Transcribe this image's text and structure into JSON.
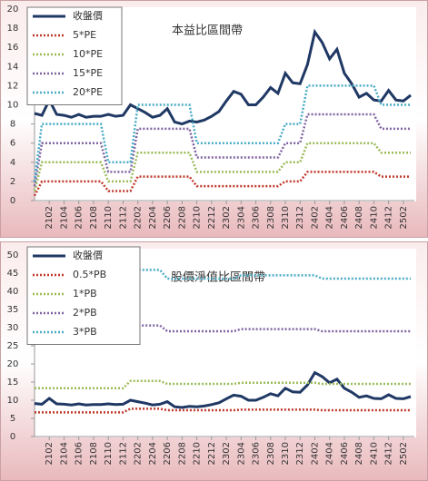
{
  "chart_data": [
    {
      "type": "line",
      "title": "本益比區間帶",
      "categories": [
        null,
        null,
        "2102",
        null,
        "2104",
        null,
        "2106",
        null,
        "2108",
        null,
        "2110",
        null,
        "2112",
        null,
        "2202",
        null,
        "2204",
        null,
        "2206",
        null,
        "2208",
        null,
        "2210",
        null,
        "2212",
        null,
        "2302",
        null,
        "2304",
        null,
        "2306",
        null,
        "2308",
        null,
        "2310",
        null,
        "2312",
        null,
        "2402",
        null,
        "2404",
        null,
        "2406",
        null,
        "2408",
        null,
        "2410",
        null,
        "2412",
        null,
        "2502",
        null
      ],
      "ylim": [
        0,
        20
      ],
      "yticks": [
        0,
        2,
        4,
        6,
        8,
        10,
        12,
        14,
        16,
        18,
        20
      ],
      "series": [
        {
          "name": "收盤價",
          "color": "#1f3864",
          "values": [
            9.1,
            8.9,
            10.5,
            9.0,
            8.9,
            8.7,
            9.0,
            8.7,
            8.8,
            8.8,
            9.0,
            8.8,
            8.9,
            10.0,
            9.6,
            9.2,
            8.7,
            8.9,
            9.6,
            8.2,
            8.0,
            8.3,
            8.2,
            8.4,
            8.8,
            9.3,
            10.4,
            11.4,
            11.1,
            10.0,
            10.0,
            10.8,
            11.8,
            11.2,
            13.3,
            12.3,
            12.2,
            14.2,
            17.6,
            16.5,
            14.8,
            15.8,
            13.3,
            12.2,
            10.8,
            11.2,
            10.5,
            10.4,
            11.5,
            10.5,
            10.4,
            11.0
          ]
        },
        {
          "name": "5*PE",
          "color": "#c0392b",
          "values": [
            0.5,
            2,
            2,
            2,
            2,
            2,
            2,
            2,
            2,
            2,
            1,
            1,
            1,
            1,
            2.5,
            2.5,
            2.5,
            2.5,
            2.5,
            2.5,
            2.5,
            2.5,
            1.5,
            1.5,
            1.5,
            1.5,
            1.5,
            1.5,
            1.5,
            1.5,
            1.5,
            1.5,
            1.5,
            1.5,
            2,
            2,
            2,
            3,
            3,
            3,
            3,
            3,
            3,
            3,
            3,
            3,
            3,
            2.5,
            2.5,
            2.5,
            2.5,
            2.5
          ]
        },
        {
          "name": "10*PE",
          "color": "#9bbb59",
          "values": [
            1,
            4,
            4,
            4,
            4,
            4,
            4,
            4,
            4,
            4,
            2,
            2,
            2,
            2,
            5,
            5,
            5,
            5,
            5,
            5,
            5,
            5,
            3,
            3,
            3,
            3,
            3,
            3,
            3,
            3,
            3,
            3,
            3,
            3,
            4,
            4,
            4,
            6,
            6,
            6,
            6,
            6,
            6,
            6,
            6,
            6,
            6,
            5,
            5,
            5,
            5,
            5
          ]
        },
        {
          "name": "15*PE",
          "color": "#8064a2",
          "values": [
            1.5,
            6,
            6,
            6,
            6,
            6,
            6,
            6,
            6,
            6,
            3,
            3,
            3,
            3,
            7.5,
            7.5,
            7.5,
            7.5,
            7.5,
            7.5,
            7.5,
            7.5,
            4.5,
            4.5,
            4.5,
            4.5,
            4.5,
            4.5,
            4.5,
            4.5,
            4.5,
            4.5,
            4.5,
            4.5,
            6,
            6,
            6,
            9,
            9,
            9,
            9,
            9,
            9,
            9,
            9,
            9,
            9,
            7.5,
            7.5,
            7.5,
            7.5,
            7.5
          ]
        },
        {
          "name": "20*PE",
          "color": "#4bacc6",
          "values": [
            2,
            8,
            8,
            8,
            8,
            8,
            8,
            8,
            8,
            8,
            4,
            4,
            4,
            4,
            10,
            10,
            10,
            10,
            10,
            10,
            10,
            10,
            6,
            6,
            6,
            6,
            6,
            6,
            6,
            6,
            6,
            6,
            6,
            6,
            8,
            8,
            8,
            12,
            12,
            12,
            12,
            12,
            12,
            12,
            12,
            12,
            12,
            10,
            10,
            10,
            10,
            10
          ]
        }
      ]
    },
    {
      "type": "line",
      "title": "股價淨值比區間帶",
      "categories": [
        null,
        null,
        "2102",
        null,
        "2104",
        null,
        "2106",
        null,
        "2108",
        null,
        "2110",
        null,
        "2112",
        null,
        "2202",
        null,
        "2204",
        null,
        "2206",
        null,
        "2208",
        null,
        "2210",
        null,
        "2212",
        null,
        "2302",
        null,
        "2304",
        null,
        "2306",
        null,
        "2308",
        null,
        "2310",
        null,
        "2312",
        null,
        "2402",
        null,
        "2404",
        null,
        "2406",
        null,
        "2408",
        null,
        "2410",
        null,
        "2412",
        null,
        "2502",
        null
      ],
      "ylim": [
        0,
        50
      ],
      "yticks": [
        0,
        5,
        10,
        15,
        20,
        25,
        30,
        35,
        40,
        45,
        50
      ],
      "series": [
        {
          "name": "收盤價",
          "color": "#1f3864",
          "values": [
            9.1,
            8.9,
            10.5,
            9.0,
            8.9,
            8.7,
            9.0,
            8.7,
            8.8,
            8.8,
            9.0,
            8.8,
            8.9,
            10.0,
            9.6,
            9.2,
            8.7,
            8.9,
            9.6,
            8.2,
            8.0,
            8.3,
            8.2,
            8.4,
            8.8,
            9.3,
            10.4,
            11.4,
            11.1,
            10.0,
            10.0,
            10.8,
            11.8,
            11.2,
            13.3,
            12.3,
            12.2,
            14.2,
            17.6,
            16.5,
            14.8,
            15.8,
            13.3,
            12.2,
            10.8,
            11.2,
            10.5,
            10.4,
            11.5,
            10.5,
            10.4,
            11.0
          ]
        },
        {
          "name": "0.5*PB",
          "color": "#c0392b",
          "values": [
            6.65,
            6.65,
            6.65,
            6.65,
            6.65,
            6.65,
            6.65,
            6.65,
            6.65,
            6.65,
            6.65,
            6.65,
            6.65,
            7.65,
            7.65,
            7.65,
            7.65,
            7.65,
            7.25,
            7.25,
            7.25,
            7.25,
            7.25,
            7.25,
            7.25,
            7.25,
            7.25,
            7.25,
            7.4,
            7.4,
            7.4,
            7.4,
            7.4,
            7.4,
            7.4,
            7.4,
            7.4,
            7.4,
            7.4,
            7.25,
            7.25,
            7.25,
            7.25,
            7.25,
            7.25,
            7.25,
            7.25,
            7.25,
            7.25,
            7.25,
            7.25,
            7.25
          ]
        },
        {
          "name": "1*PB",
          "color": "#9bbb59",
          "values": [
            13.3,
            13.3,
            13.3,
            13.3,
            13.3,
            13.3,
            13.3,
            13.3,
            13.3,
            13.3,
            13.3,
            13.3,
            13.3,
            15.3,
            15.3,
            15.3,
            15.3,
            15.3,
            14.5,
            14.5,
            14.5,
            14.5,
            14.5,
            14.5,
            14.5,
            14.5,
            14.5,
            14.5,
            14.8,
            14.8,
            14.8,
            14.8,
            14.8,
            14.8,
            14.8,
            14.8,
            14.8,
            14.8,
            14.8,
            14.5,
            14.5,
            14.5,
            14.5,
            14.5,
            14.5,
            14.5,
            14.5,
            14.5,
            14.5,
            14.5,
            14.5,
            14.5
          ]
        },
        {
          "name": "2*PB",
          "color": "#8064a2",
          "values": [
            26.6,
            26.6,
            26.6,
            26.6,
            26.6,
            26.6,
            26.6,
            26.6,
            26.6,
            26.6,
            26.6,
            26.6,
            26.6,
            30.6,
            30.6,
            30.6,
            30.6,
            30.6,
            29,
            29,
            29,
            29,
            29,
            29,
            29,
            29,
            29,
            29,
            29.6,
            29.6,
            29.6,
            29.6,
            29.6,
            29.6,
            29.6,
            29.6,
            29.6,
            29.6,
            29.6,
            29,
            29,
            29,
            29,
            29,
            29,
            29,
            29,
            29,
            29,
            29,
            29,
            29
          ]
        },
        {
          "name": "3*PB",
          "color": "#4bacc6",
          "values": [
            39.9,
            39.9,
            39.9,
            39.9,
            39.9,
            39.9,
            39.9,
            39.9,
            39.9,
            39.9,
            39.9,
            39.9,
            39.9,
            45.9,
            45.9,
            45.9,
            45.9,
            45.9,
            43.5,
            43.5,
            43.5,
            43.5,
            43.5,
            43.5,
            43.5,
            43.5,
            43.5,
            43.5,
            44.4,
            44.4,
            44.4,
            44.4,
            44.4,
            44.4,
            44.4,
            44.4,
            44.4,
            44.4,
            44.4,
            43.5,
            43.5,
            43.5,
            43.5,
            43.5,
            43.5,
            43.5,
            43.5,
            43.5,
            43.5,
            43.5,
            43.5,
            43.5
          ]
        }
      ]
    }
  ]
}
